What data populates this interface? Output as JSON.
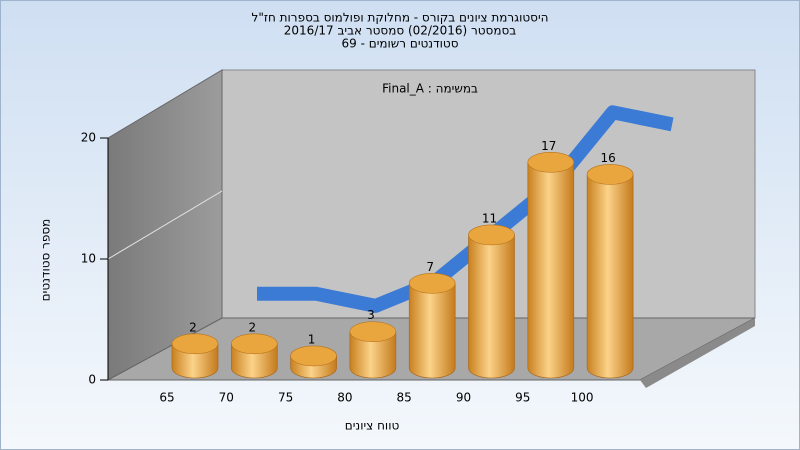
{
  "chart_data": {
    "type": "bar",
    "title": "היסטוגרמת ציונים בקורס - מחלוקת ופולמוס בספרות חז\"ל",
    "subtitle": [
      "בסמסטר  (02/2016)  סמסטר אביב 2016/17",
      "סטודנטים רשומים - 69"
    ],
    "annotation": "במשימה : Final_A",
    "x_label": "טווח ציונים",
    "y_label": "מספר סטודנטים",
    "categories": [
      "65",
      "70",
      "75",
      "80",
      "85",
      "90",
      "95",
      "100"
    ],
    "values": [
      2,
      2,
      1,
      3,
      7,
      11,
      17,
      16
    ],
    "color": "#e8a33c",
    "trend_color": "#3b7bd6",
    "ylim": [
      0,
      20
    ],
    "yticks": [
      0,
      10,
      20
    ],
    "grid": true
  }
}
